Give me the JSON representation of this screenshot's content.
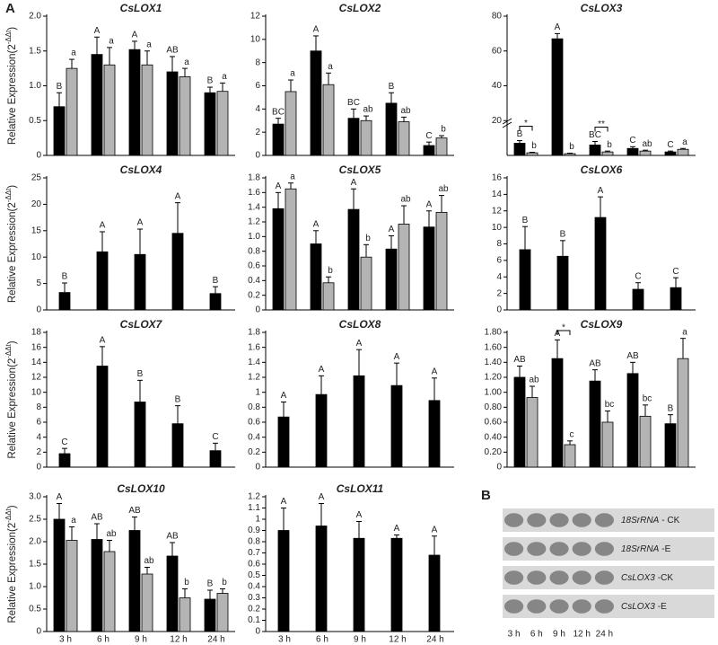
{
  "figure": {
    "panel_a_label": "A",
    "panel_b_label": "B"
  },
  "chart_data": [
    {
      "type": "bar",
      "title": "CsLOX1",
      "ylabel": "Relative Expression(2",
      "ylabel_sup": "-ΔΔt",
      "ylabel_end": ")",
      "categories": [
        null,
        null,
        null,
        null,
        null
      ],
      "ylim": [
        0,
        2
      ],
      "yticks": [
        0,
        0.5,
        {
          "value": 1,
          "label": "1.0"
        },
        1.5,
        {
          "value": 2,
          "label": "2.0"
        }
      ],
      "series": [
        {
          "color": "#000000",
          "values": [
            0.7,
            1.45,
            1.52,
            1.2,
            0.9
          ],
          "errors": [
            0.2,
            0.25,
            0.12,
            0.22,
            0.08
          ],
          "letters": [
            "B",
            "A",
            "A",
            "AB",
            "B"
          ]
        },
        {
          "color": "#b4b4b4",
          "values": [
            1.25,
            1.3,
            1.3,
            1.13,
            0.92
          ],
          "errors": [
            0.13,
            0.25,
            0.2,
            0.12,
            0.12
          ],
          "letters": [
            "a",
            "a",
            "a",
            "a",
            "a"
          ]
        }
      ]
    },
    {
      "type": "bar",
      "title": "CsLOX2",
      "categories": [
        null,
        null,
        null,
        null,
        null
      ],
      "ylim": [
        0,
        12
      ],
      "yticks": [
        0,
        2,
        4,
        6,
        8,
        10,
        12
      ],
      "series": [
        {
          "color": "#000000",
          "values": [
            2.7,
            9.0,
            3.2,
            4.5,
            0.85
          ],
          "errors": [
            0.5,
            1.3,
            0.8,
            0.9,
            0.3
          ],
          "letters": [
            "BC",
            "A",
            "BC",
            "B",
            "C"
          ]
        },
        {
          "color": "#b4b4b4",
          "values": [
            5.5,
            6.1,
            3.0,
            2.9,
            1.5
          ],
          "errors": [
            1.0,
            1.0,
            0.4,
            0.4,
            0.2
          ],
          "letters": [
            "a",
            "a",
            "ab",
            "ab",
            "b"
          ]
        }
      ]
    },
    {
      "type": "bar",
      "title": "CsLOX3",
      "categories": [
        null,
        null,
        null,
        null,
        null
      ],
      "ylim": [
        0,
        80
      ],
      "yticks": [
        20,
        40,
        60,
        80
      ],
      "axis_break": true,
      "annotations": [
        "*",
        "**"
      ],
      "series": [
        {
          "color": "#000000",
          "values": [
            7,
            67,
            6,
            4,
            2
          ],
          "errors": [
            1.5,
            3,
            2,
            1,
            0.5
          ],
          "letters": [
            "B",
            "A",
            "BC",
            "C",
            "C"
          ]
        },
        {
          "color": "#b4b4b4",
          "values": [
            1.5,
            1,
            2,
            2.5,
            3.5
          ],
          "errors": [
            0.3,
            0.3,
            0.5,
            0.5,
            0.5
          ],
          "letters": [
            "b",
            "b",
            "b",
            "ab",
            "a"
          ]
        }
      ]
    },
    {
      "type": "bar",
      "title": "CsLOX4",
      "ylabel": "Relative Expression(2",
      "ylabel_sup": "-ΔΔt",
      "ylabel_end": ")",
      "categories": [
        null,
        null,
        null,
        null,
        null
      ],
      "ylim": [
        0,
        25
      ],
      "yticks": [
        0,
        5,
        10,
        15,
        20,
        25
      ],
      "series": [
        {
          "color": "#000000",
          "values": [
            3.3,
            11,
            10.5,
            14.5,
            3.1
          ],
          "errors": [
            1.8,
            3.8,
            4.8,
            5.8,
            1.3
          ],
          "letters": [
            "B",
            "A",
            "A",
            "A",
            "B"
          ]
        }
      ]
    },
    {
      "type": "bar",
      "title": "CsLOX5",
      "categories": [
        null,
        null,
        null,
        null,
        null
      ],
      "ylim": [
        0,
        1.8
      ],
      "yticks": [
        0,
        0.2,
        0.4,
        0.6,
        0.8,
        {
          "value": 1,
          "label": "1.0"
        },
        1.2,
        1.4,
        1.6,
        1.8
      ],
      "series": [
        {
          "color": "#000000",
          "values": [
            1.38,
            0.9,
            1.37,
            0.83,
            1.13
          ],
          "errors": [
            0.22,
            0.18,
            0.28,
            0.18,
            0.22
          ],
          "letters": [
            "A",
            "A",
            "A",
            "A",
            "A"
          ]
        },
        {
          "color": "#b4b4b4",
          "values": [
            1.65,
            0.37,
            0.72,
            1.17,
            1.33
          ],
          "errors": [
            0.08,
            0.08,
            0.17,
            0.25,
            0.23
          ],
          "letters": [
            "a",
            "b",
            "b",
            "ab",
            "ab"
          ]
        }
      ]
    },
    {
      "type": "bar",
      "title": "CsLOX6",
      "categories": [
        null,
        null,
        null,
        null,
        null
      ],
      "ylim": [
        0,
        16
      ],
      "yticks": [
        0,
        2,
        4,
        6,
        8,
        10,
        12,
        14,
        16
      ],
      "series": [
        {
          "color": "#000000",
          "values": [
            7.3,
            6.5,
            11.2,
            2.5,
            2.7
          ],
          "errors": [
            2.8,
            1.9,
            2.5,
            0.8,
            1.2
          ],
          "letters": [
            "B",
            "B",
            "A",
            "C",
            "C"
          ]
        }
      ]
    },
    {
      "type": "bar",
      "title": "CsLOX7",
      "ylabel": "Relative Expression(2",
      "ylabel_sup": "-ΔΔt",
      "ylabel_end": ")",
      "categories": [
        null,
        null,
        null,
        null,
        null
      ],
      "ylim": [
        0,
        18
      ],
      "yticks": [
        0,
        2,
        4,
        6,
        8,
        10,
        12,
        14,
        16,
        18
      ],
      "series": [
        {
          "color": "#000000",
          "values": [
            1.8,
            13.5,
            8.7,
            5.8,
            2.2
          ],
          "errors": [
            0.7,
            2.6,
            2.9,
            2.4,
            1.0
          ],
          "letters": [
            "C",
            "A",
            "B",
            "B",
            "C"
          ]
        }
      ]
    },
    {
      "type": "bar",
      "title": "CsLOX8",
      "categories": [
        null,
        null,
        null,
        null,
        null
      ],
      "ylim": [
        0,
        1.8
      ],
      "yticks": [
        0,
        0.2,
        0.4,
        0.6,
        0.8,
        1,
        1.2,
        1.4,
        1.6,
        1.8
      ],
      "series": [
        {
          "color": "#000000",
          "values": [
            0.67,
            0.97,
            1.22,
            1.09,
            0.89
          ],
          "errors": [
            0.2,
            0.25,
            0.35,
            0.3,
            0.3
          ],
          "letters": [
            "A",
            "A",
            "A",
            "A",
            "A"
          ]
        }
      ]
    },
    {
      "type": "bar",
      "title": "CsLOX9",
      "categories": [
        null,
        null,
        null,
        null,
        null
      ],
      "ylim": [
        0,
        1.8
      ],
      "yticks": [
        0,
        {
          "value": 0.2,
          "label": "0.20"
        },
        {
          "value": 0.4,
          "label": "0.40"
        },
        {
          "value": 0.6,
          "label": "0.60"
        },
        {
          "value": 0.8,
          "label": "0.80"
        },
        {
          "value": 1,
          "label": "1.00"
        },
        {
          "value": 1.2,
          "label": "1.20"
        },
        {
          "value": 1.4,
          "label": "1.40"
        },
        {
          "value": 1.6,
          "label": "1.60"
        },
        {
          "value": 1.8,
          "label": "1.80"
        }
      ],
      "annotations": [
        "*"
      ],
      "series": [
        {
          "color": "#000000",
          "values": [
            1.2,
            1.45,
            1.15,
            1.25,
            0.58
          ],
          "errors": [
            0.15,
            0.25,
            0.15,
            0.15,
            0.12
          ],
          "letters": [
            "AB",
            "A",
            "AB",
            "AB",
            "B"
          ]
        },
        {
          "color": "#b4b4b4",
          "values": [
            0.93,
            0.3,
            0.6,
            0.68,
            1.45
          ],
          "errors": [
            0.15,
            0.05,
            0.15,
            0.15,
            0.27
          ],
          "letters": [
            "ab",
            "c",
            "bc",
            "bc",
            "a"
          ]
        }
      ]
    },
    {
      "type": "bar",
      "title": "CsLOX10",
      "ylabel": "Relative Expression(2",
      "ylabel_sup": "-ΔΔt",
      "ylabel_end": ")",
      "categories": [
        "3 h",
        "6 h",
        "9 h",
        "12 h",
        "24 h"
      ],
      "ylim": [
        0,
        3
      ],
      "yticks": [
        0,
        0.5,
        {
          "value": 1,
          "label": "1.0"
        },
        1.5,
        {
          "value": 2,
          "label": "2.0"
        },
        2.5,
        {
          "value": 3,
          "label": "3.0"
        }
      ],
      "series": [
        {
          "color": "#000000",
          "values": [
            2.5,
            2.05,
            2.25,
            1.68,
            0.72
          ],
          "errors": [
            0.35,
            0.35,
            0.3,
            0.3,
            0.2
          ],
          "letters": [
            "A",
            "AB",
            "AB",
            "AB",
            "B"
          ]
        },
        {
          "color": "#b4b4b4",
          "values": [
            2.03,
            1.78,
            1.28,
            0.75,
            0.85
          ],
          "errors": [
            0.3,
            0.25,
            0.15,
            0.2,
            0.1
          ],
          "letters": [
            "a",
            "ab",
            "ab",
            "b",
            "b"
          ]
        }
      ]
    },
    {
      "type": "bar",
      "title": "CsLOX11",
      "categories": [
        "3 h",
        "6 h",
        "9 h",
        "12 h",
        "24 h"
      ],
      "ylim": [
        0,
        1.2
      ],
      "yticks": [
        0,
        0.1,
        0.2,
        0.3,
        0.4,
        0.5,
        0.6,
        0.7,
        0.8,
        0.9,
        1,
        1.1,
        1.2
      ],
      "series": [
        {
          "color": "#000000",
          "values": [
            0.9,
            0.94,
            0.83,
            0.83,
            0.68
          ],
          "errors": [
            0.2,
            0.2,
            0.15,
            0.03,
            0.17
          ],
          "letters": [
            "A",
            "A",
            "A",
            "A",
            "A"
          ]
        }
      ]
    }
  ],
  "blot": {
    "rows": [
      {
        "gene": "18SrRNA",
        "condition": "- CK"
      },
      {
        "gene": "18SrRNA",
        "condition": "-E"
      },
      {
        "gene": "CsLOX3",
        "condition": "-CK"
      },
      {
        "gene": "CsLOX3",
        "condition": "-E"
      }
    ],
    "lanes": [
      "3 h",
      "6 h",
      "9 h",
      "12 h",
      "24 h"
    ]
  }
}
